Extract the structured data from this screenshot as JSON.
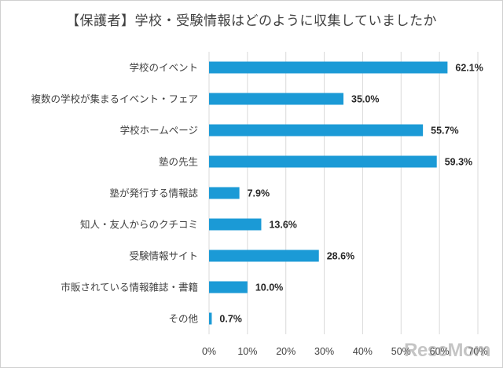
{
  "chart_data": {
    "type": "bar",
    "orientation": "horizontal",
    "title": "【保護者】学校・受験情報はどのように収集していましたか",
    "categories": [
      "学校のイベント",
      "複数の学校が集まるイベント・フェア",
      "学校ホームページ",
      "塾の先生",
      "塾が発行する情報誌",
      "知人・友人からのクチコミ",
      "受験情報サイト",
      "市販されている情報雑誌・書籍",
      "その他"
    ],
    "values": [
      62.1,
      35.0,
      55.7,
      59.3,
      7.9,
      13.6,
      28.6,
      10.0,
      0.7
    ],
    "value_labels": [
      "62.1%",
      "35.0%",
      "55.7%",
      "59.3%",
      "7.9%",
      "13.6%",
      "28.6%",
      "10.0%",
      "0.7%"
    ],
    "xlim": [
      0,
      70
    ],
    "x_ticks": [
      "0%",
      "10%",
      "20%",
      "30%",
      "40%",
      "50%",
      "60%",
      "70%"
    ],
    "grid": true,
    "bar_color": "#1b9ad6"
  },
  "watermark": "ReseMom"
}
